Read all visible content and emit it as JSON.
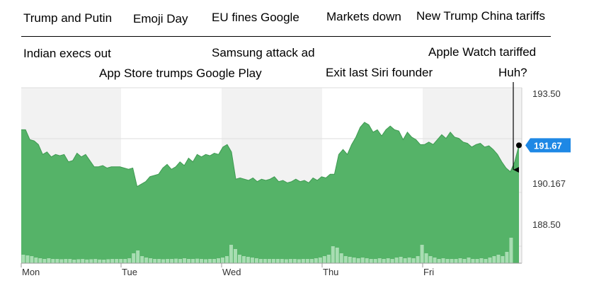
{
  "headlines": [
    {
      "id": "trump-putin",
      "text": "Trump and Putin"
    },
    {
      "id": "emoji-day",
      "text": "Emoji Day"
    },
    {
      "id": "eu-fines-google",
      "text": "EU fines Google"
    },
    {
      "id": "markets-down",
      "text": "Markets down"
    },
    {
      "id": "new-trump-china-tariffs",
      "text": "New Trump China tariffs"
    },
    {
      "id": "indian-execs-out",
      "text": "Indian execs out"
    },
    {
      "id": "samsung-attack-ad",
      "text": "Samsung attack ad"
    },
    {
      "id": "apple-watch-tariffed",
      "text": "Apple Watch tariffed"
    },
    {
      "id": "app-store-trumps-google-play",
      "text": "App Store trumps Google Play"
    },
    {
      "id": "exit-last-siri-founder",
      "text": "Exit last Siri founder"
    },
    {
      "id": "huh",
      "text": "Huh?"
    }
  ],
  "chart_data": {
    "type": "area",
    "days": [
      "Mon",
      "Tue",
      "Wed",
      "Thu",
      "Fri"
    ],
    "y_ticks": [
      "193.50",
      "190.167",
      "188.50"
    ],
    "ylim": [
      186.9,
      194.0
    ],
    "current_price": 191.67,
    "current_price_label": "191.67",
    "colors": {
      "area": "#55b368",
      "area_line": "#3f9a52",
      "volume": "#a8ddb2",
      "badge": "#1e88e5",
      "shade": "#f2f2f2"
    },
    "price_series": [
      192.3,
      192.3,
      191.9,
      191.85,
      191.7,
      191.3,
      191.4,
      191.2,
      191.3,
      191.25,
      191.3,
      191.0,
      191.05,
      191.35,
      191.2,
      191.3,
      191.05,
      190.8,
      190.8,
      190.85,
      190.75,
      190.8,
      190.8,
      190.8,
      190.75,
      190.7,
      190.75,
      190.0,
      190.1,
      190.2,
      190.4,
      190.45,
      190.5,
      190.75,
      190.9,
      190.7,
      190.8,
      191.0,
      190.85,
      191.15,
      191.0,
      191.3,
      191.2,
      191.3,
      191.25,
      191.35,
      191.3,
      191.6,
      191.7,
      191.4,
      190.3,
      190.35,
      190.3,
      190.25,
      190.35,
      190.2,
      190.3,
      190.25,
      190.3,
      190.4,
      190.2,
      190.25,
      190.15,
      190.2,
      190.3,
      190.2,
      190.25,
      190.15,
      190.35,
      190.25,
      190.4,
      190.35,
      190.5,
      190.5,
      191.3,
      191.5,
      191.3,
      191.7,
      192.0,
      192.4,
      192.6,
      192.5,
      192.2,
      192.3,
      192.05,
      192.3,
      192.45,
      192.3,
      192.25,
      191.9,
      192.2,
      192.0,
      191.9,
      191.7,
      191.7,
      191.8,
      191.7,
      191.9,
      192.1,
      191.95,
      192.2,
      192.0,
      191.95,
      191.8,
      191.75,
      191.6,
      191.7,
      191.75,
      191.6,
      191.65,
      191.5,
      191.3,
      191.0,
      190.75,
      190.6,
      191.0,
      191.67
    ],
    "volume_series": [
      0.6,
      0.55,
      0.5,
      0.4,
      0.35,
      0.3,
      0.35,
      0.3,
      0.3,
      0.28,
      0.3,
      0.3,
      0.25,
      0.28,
      0.3,
      0.26,
      0.28,
      0.3,
      0.26,
      0.25,
      0.28,
      0.3,
      0.3,
      0.3,
      0.3,
      0.35,
      0.7,
      0.9,
      0.5,
      0.4,
      0.35,
      0.3,
      0.3,
      0.28,
      0.3,
      0.3,
      0.32,
      0.3,
      0.35,
      0.3,
      0.3,
      0.32,
      0.3,
      0.28,
      0.3,
      0.3,
      0.35,
      0.4,
      0.5,
      1.3,
      1.0,
      0.6,
      0.5,
      0.45,
      0.4,
      0.35,
      0.3,
      0.3,
      0.3,
      0.3,
      0.3,
      0.3,
      0.28,
      0.3,
      0.3,
      0.28,
      0.3,
      0.3,
      0.3,
      0.35,
      0.4,
      0.5,
      0.6,
      1.2,
      1.1,
      0.7,
      0.5,
      0.45,
      0.4,
      0.35,
      0.4,
      0.35,
      0.3,
      0.3,
      0.35,
      0.3,
      0.35,
      0.3,
      0.4,
      0.45,
      0.35,
      0.4,
      0.35,
      0.5,
      1.3,
      0.7,
      0.5,
      0.4,
      0.3,
      0.35,
      0.3,
      0.3,
      0.3,
      0.35,
      0.3,
      0.4,
      0.3,
      0.3,
      0.35,
      0.3,
      0.4,
      0.5,
      0.6,
      0.5,
      0.8,
      1.8,
      0.0,
      0.0
    ]
  }
}
